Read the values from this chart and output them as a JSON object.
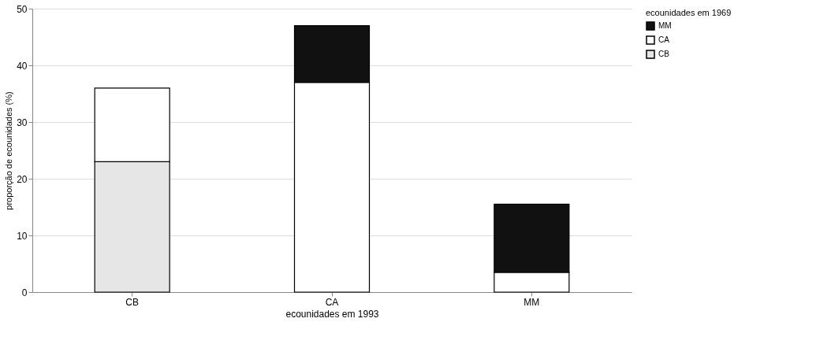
{
  "chart_data": {
    "type": "bar",
    "stacked": true,
    "xlabel": "ecounidades em 1993",
    "ylabel": "proporção de ecounidades (%)",
    "legend_title": "ecounidades em 1969",
    "categories": [
      "CB",
      "CA",
      "MM"
    ],
    "series": [
      {
        "name": "CB",
        "color": "#e6e6e6",
        "values": [
          23,
          null,
          null
        ]
      },
      {
        "name": "CA",
        "color": "#ffffff",
        "values": [
          13,
          37,
          3.5
        ]
      },
      {
        "name": "MM",
        "color": "#111111",
        "values": [
          null,
          10,
          12
        ]
      }
    ],
    "ylim": [
      0,
      50
    ],
    "yticks": [
      0,
      10,
      20,
      30,
      40,
      50
    ],
    "grid": "y",
    "legend": "right"
  }
}
